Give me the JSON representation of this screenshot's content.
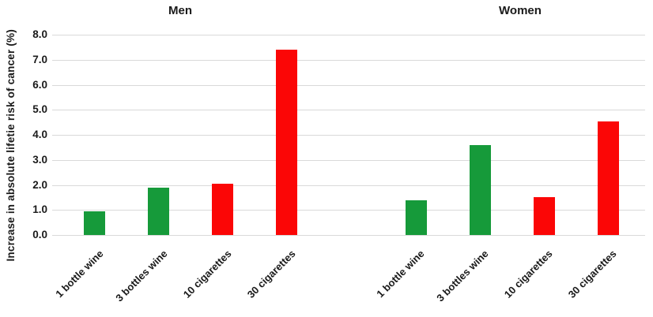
{
  "chart_data": {
    "type": "bar",
    "title": "",
    "xlabel": "",
    "ylabel": "Increase in absolute lifetie risk of cancer (%)",
    "ylim": [
      0,
      8
    ],
    "y_ticks": [
      "8.0",
      "7.0",
      "6.0",
      "5.0",
      "4.0",
      "3.0",
      "2.0",
      "1.0",
      "0.0"
    ],
    "grid": true,
    "legend_position": "none",
    "categories": [
      "1 bottle wine",
      "3 bottles wine",
      "10 cigarettes",
      "30 cigarettes"
    ],
    "series": [
      {
        "name": "Men",
        "values": [
          0.95,
          1.9,
          2.05,
          7.4
        ],
        "bar_colors": [
          "#169a3a",
          "#169a3a",
          "#fb0606",
          "#fb0606"
        ]
      },
      {
        "name": "Women",
        "values": [
          1.4,
          3.6,
          1.5,
          4.55
        ],
        "bar_colors": [
          "#169a3a",
          "#169a3a",
          "#fb0606",
          "#fb0606"
        ]
      }
    ]
  },
  "colors": {
    "wine_green": "#169a3a",
    "cigarette_red": "#fb0606",
    "gridline": "#d9d9d9",
    "text": "#1a1a1a",
    "background": "#ffffff"
  }
}
